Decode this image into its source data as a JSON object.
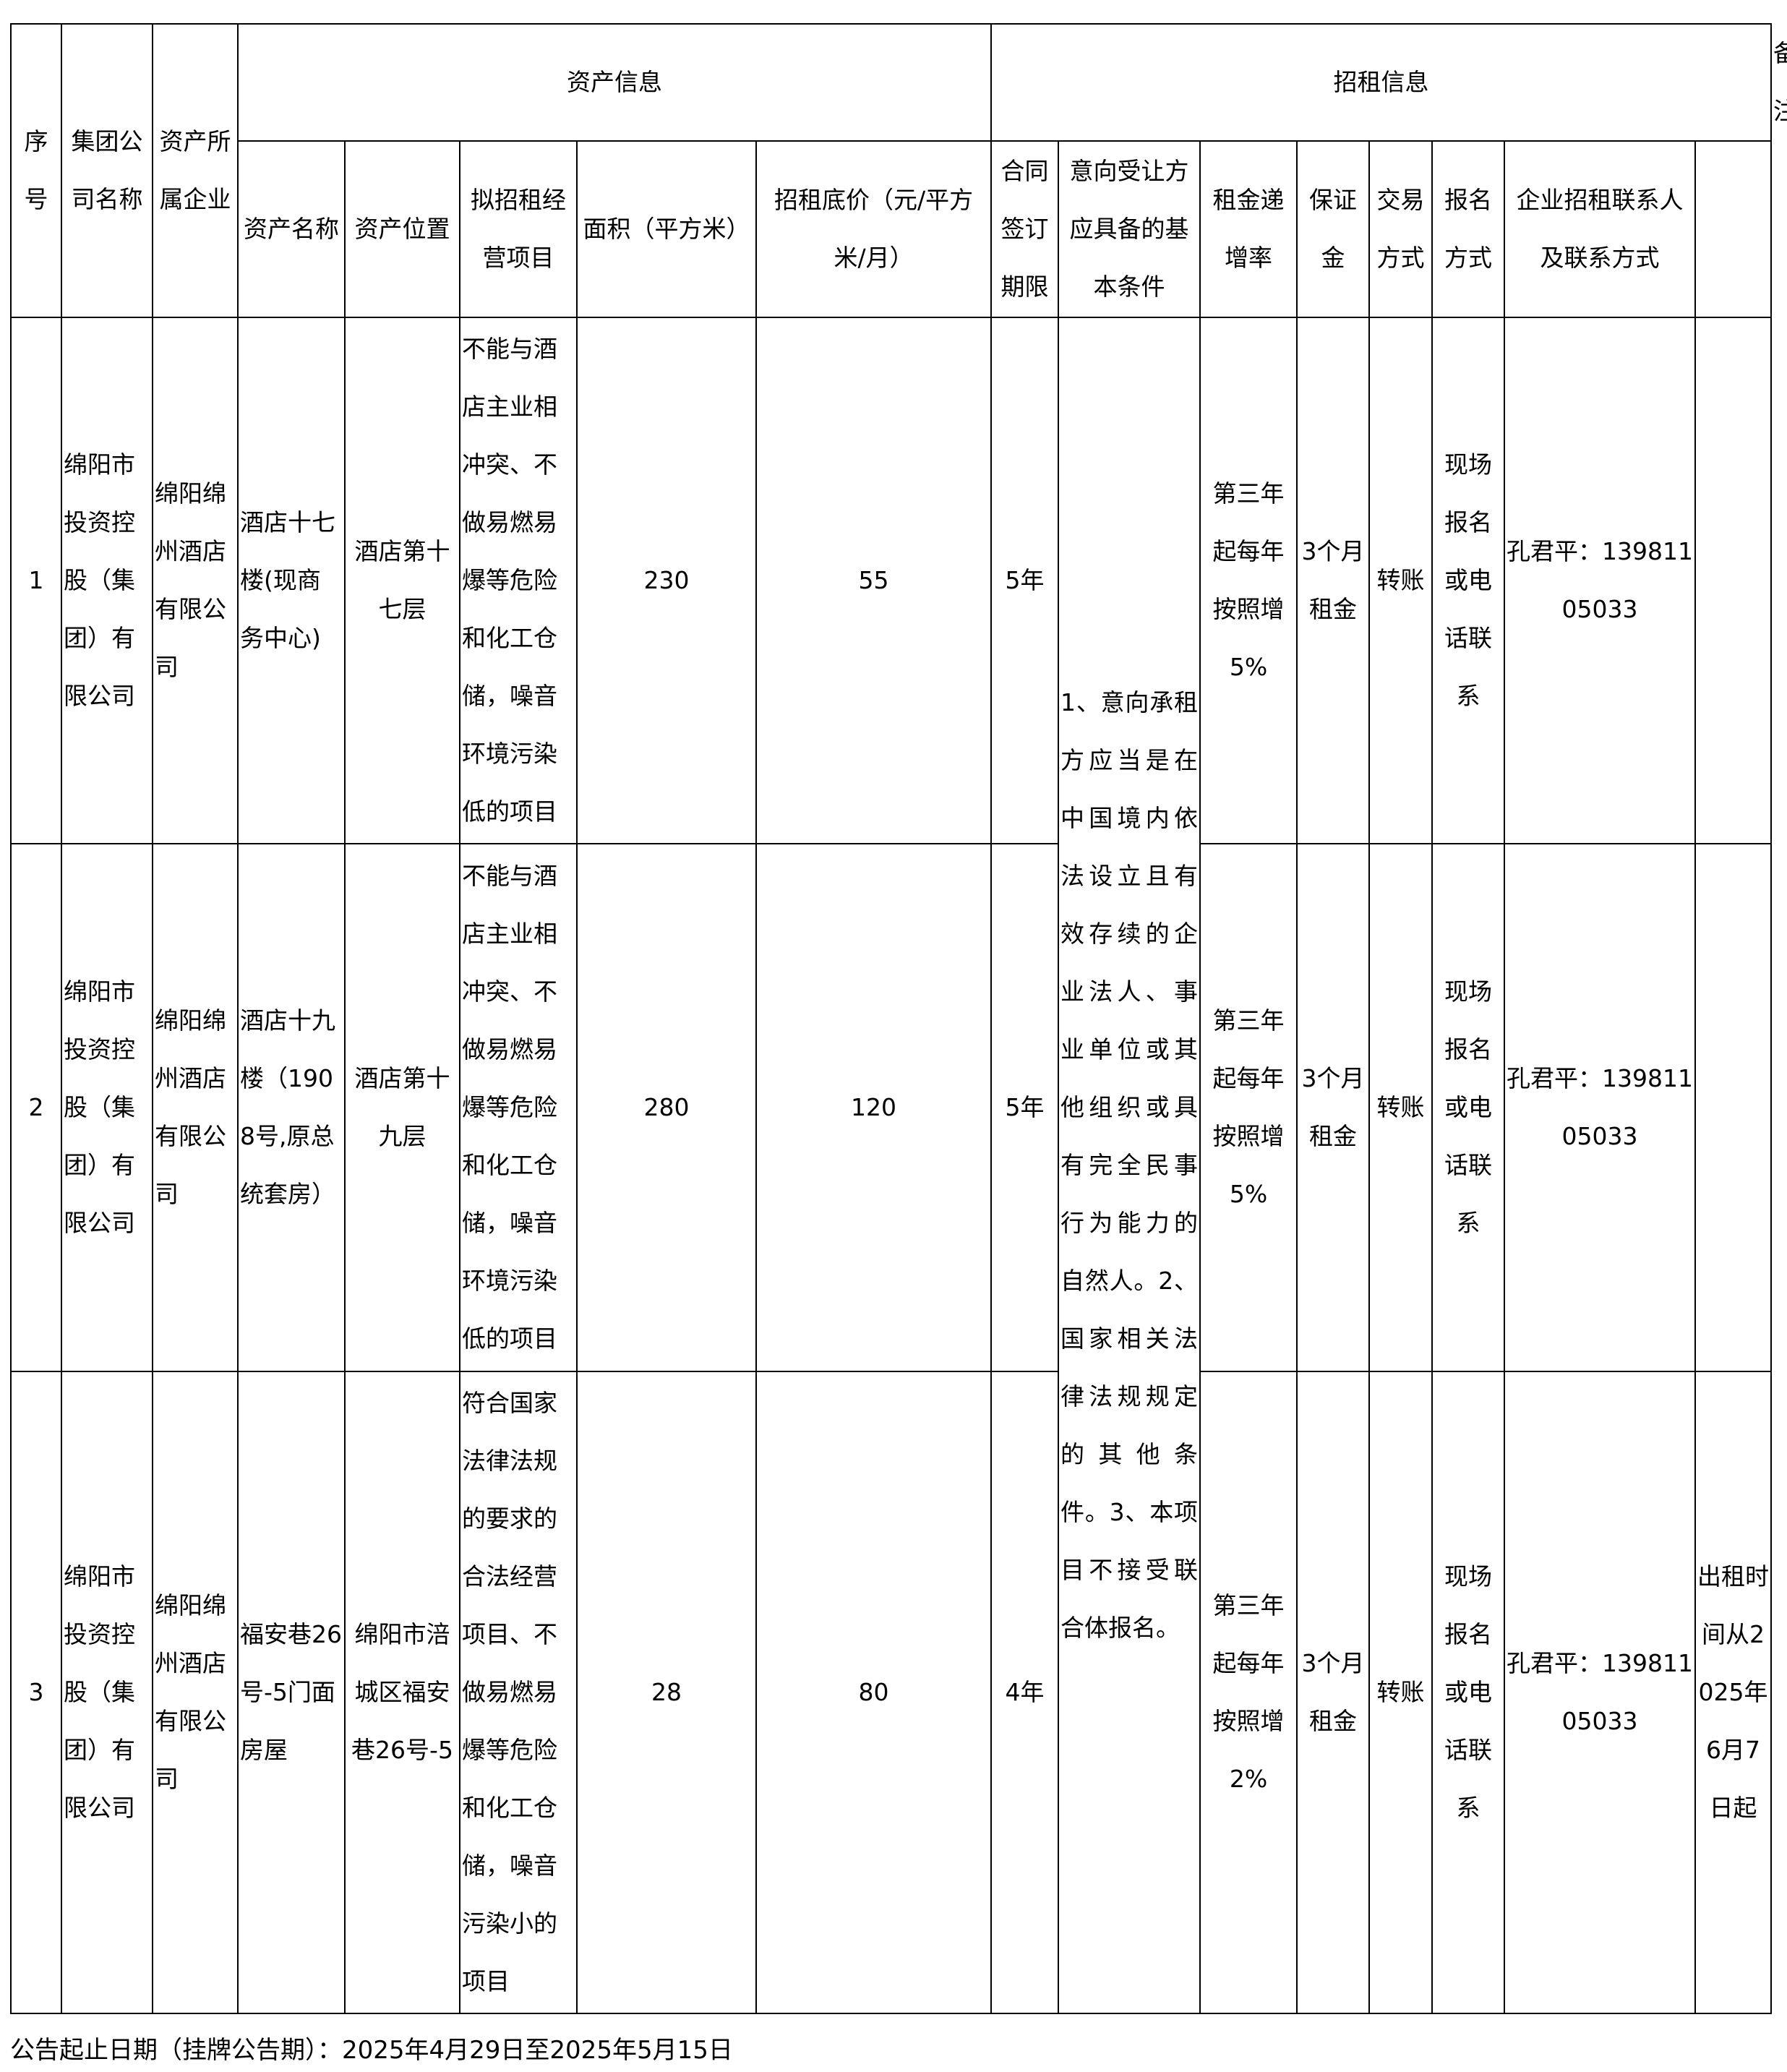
{
  "headers": {
    "seq": "序号",
    "group": "集团公司名称",
    "owner": "资产所属企业",
    "asset_info": "资产信息",
    "rent_info": "招租信息",
    "note": "备注",
    "name": "资产名称",
    "location": "资产位置",
    "project": "拟招租经营项目",
    "area": "面积（平方米）",
    "price": "招租底价（元/平方米/月）",
    "term": "合同签订期限",
    "conditions": "意向受让方应具备的基本条件",
    "rate": "租金递增率",
    "deposit": "保证金",
    "trade": "交易方式",
    "signup": "报名方式",
    "contact": "企业招租联系人及联系方式"
  },
  "conditions": "1、意向承租方应当是在中国境内依法设立且有效存续的企业法人、事业单位或其他组织或具有完全民事行为能力的自然人。2、国家相关法律法规规定的其他条件。3、本项目不接受联合体报名。",
  "rows": [
    {
      "seq": "1",
      "group": "绵阳市投资控股（集团）有限公司",
      "owner": "绵阳绵州酒店有限公司",
      "name": "酒店十七楼(现商务中心)",
      "location": "酒店第十七层",
      "project": "不能与酒店主业相冲突、不做易燃易爆等危险和化工仓储，噪音环境污染低的项目",
      "area": "230",
      "price": "55",
      "term": "5年",
      "rate": "第三年起每年按照增5%",
      "deposit": "3个月租金",
      "trade": "转账",
      "signup": "现场报名或电话联系",
      "contact": "孔君平：13981105033",
      "note": ""
    },
    {
      "seq": "2",
      "group": "绵阳市投资控股（集团）有限公司",
      "owner": "绵阳绵州酒店有限公司",
      "name": "酒店十九楼（1908号,原总统套房）",
      "location": "酒店第十九层",
      "project": "不能与酒店主业相冲突、不做易燃易爆等危险和化工仓储，噪音环境污染低的项目",
      "area": "280",
      "price": "120",
      "term": "5年",
      "rate": "第三年起每年按照增5%",
      "deposit": "3个月租金",
      "trade": "转账",
      "signup": "现场报名或电话联系",
      "contact": "孔君平：13981105033",
      "note": ""
    },
    {
      "seq": "3",
      "group": "绵阳市投资控股（集团）有限公司",
      "owner": "绵阳绵州酒店有限公司",
      "name": "福安巷26号-5门面房屋",
      "location": "绵阳市涪城区福安巷26号-5",
      "project": "符合国家法律法规的要求的合法经营项目、不做易燃易爆等危险和化工仓储，噪音污染小的项目",
      "area": "28",
      "price": "80",
      "term": "4年",
      "rate": "第三年起每年按照增2%",
      "deposit": "3个月租金",
      "trade": "转账",
      "signup": "现场报名或电话联系",
      "contact": "孔君平：13981105033",
      "note": "出租时间从2025年6月7日起"
    }
  ],
  "footer": "公告起止日期（挂牌公告期）：2025年4月29日至2025年5月15日"
}
